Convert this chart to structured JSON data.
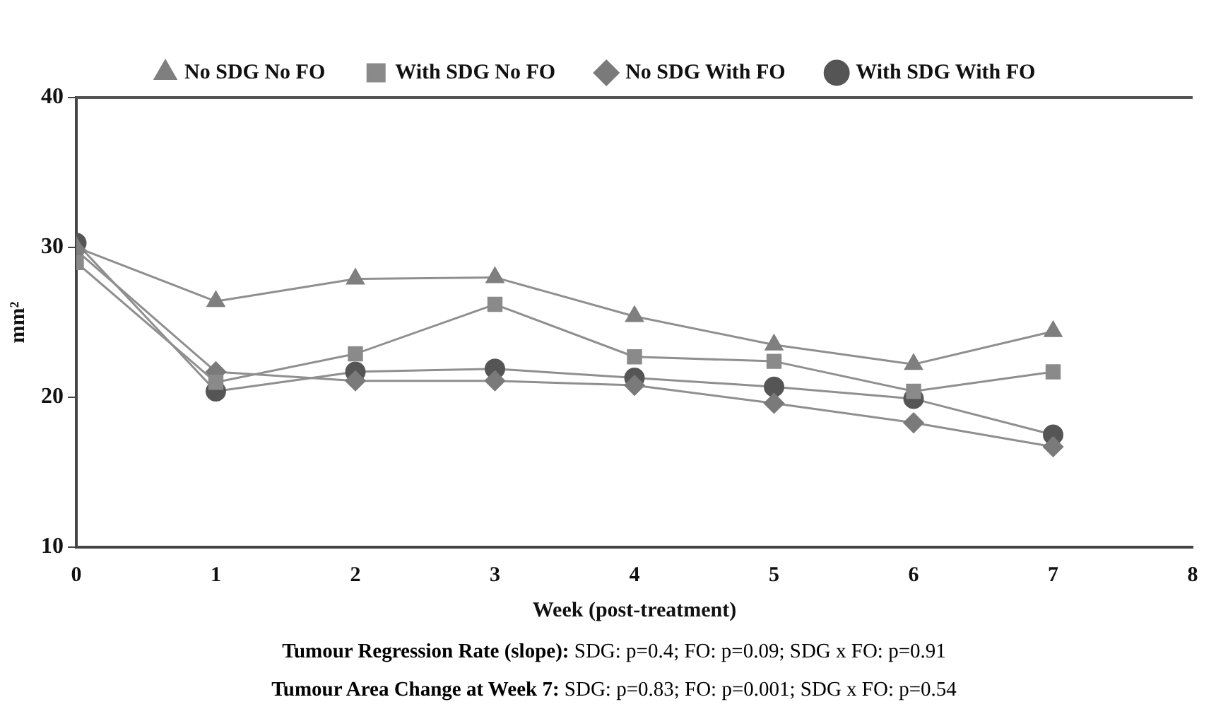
{
  "chart_data": {
    "type": "line",
    "xlabel": "Week (post-treatment)",
    "ylabel": "mm²",
    "x": [
      0,
      1,
      2,
      3,
      4,
      5,
      6,
      7
    ],
    "series": [
      {
        "name": "No SDG No FO",
        "color": "#7f7f7f",
        "marker": "triangle",
        "values": [
          30.0,
          26.4,
          27.9,
          28.0,
          25.4,
          23.5,
          22.2,
          24.4
        ]
      },
      {
        "name": "With SDG No FO",
        "color": "#8a8a8a",
        "marker": "square",
        "values": [
          29.0,
          21.0,
          22.9,
          26.2,
          22.7,
          22.4,
          20.4,
          21.7
        ]
      },
      {
        "name": "No SDG With FO",
        "color": "#7a7a7a",
        "marker": "diamond",
        "values": [
          29.8,
          21.7,
          21.1,
          21.1,
          20.8,
          19.6,
          18.3,
          16.7
        ]
      },
      {
        "name": "With SDG With FO",
        "color": "#555555",
        "marker": "circle",
        "values": [
          30.3,
          20.4,
          21.7,
          21.9,
          21.3,
          20.7,
          19.9,
          17.5
        ]
      }
    ],
    "xlim": [
      0,
      8
    ],
    "xticks": [
      0,
      1,
      2,
      3,
      4,
      5,
      6,
      7,
      8
    ],
    "ylim": [
      10,
      40
    ],
    "yticks": [
      10,
      20,
      30,
      40
    ],
    "grid": false,
    "legend": "top",
    "annotations": [
      "Tumour Regression Rate (slope): SDG: p=0.4; FO: p=0.09; SDG x FO: p=0.91",
      "Tumour Area Change at Week 7: SDG: p=0.83; FO: p=0.001; SDG x FO: p=0.54"
    ]
  }
}
